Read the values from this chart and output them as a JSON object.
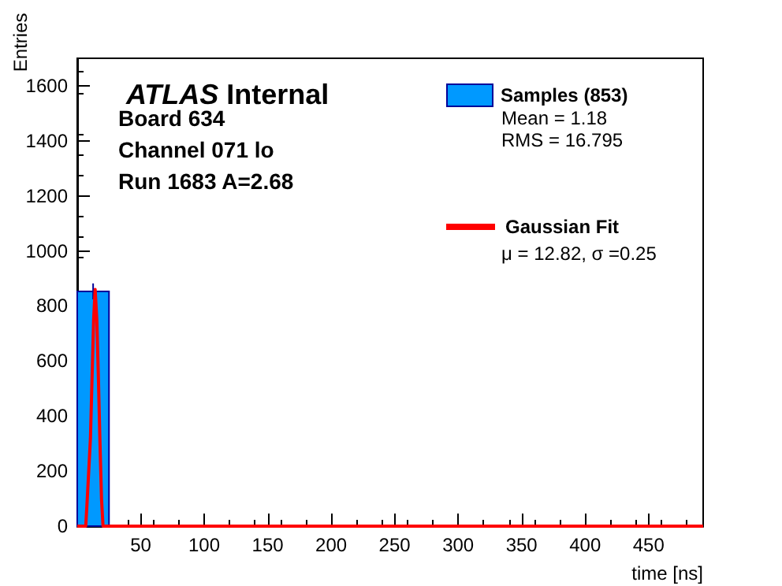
{
  "chart_data": {
    "type": "histogram",
    "title": "ATLAS Internal",
    "xlabel": "time [ns]",
    "ylabel": "Entries",
    "annotations": [
      "Board 634",
      "Channel 071 lo",
      "Run 1683 A=2.68",
      "Mean = 1.18",
      "RMS = 16.795",
      "μ = 12.82, σ =0.25"
    ],
    "series": [
      {
        "name": "Samples (853)",
        "type": "histogram",
        "color": "#0099ff",
        "bins": [
          0,
          25
        ],
        "values": [
          853
        ],
        "errors": [
          29
        ]
      },
      {
        "name": "Gaussian Fit",
        "type": "line",
        "color": "#ff0000",
        "x": [
          0,
          6.7,
          7.9,
          10.4,
          11.6,
          12.9,
          14.1,
          15.4,
          16.7,
          17.8,
          19.1,
          20.3,
          493
        ],
        "values": [
          0,
          0,
          100,
          320,
          530,
          750,
          860,
          750,
          530,
          320,
          100,
          0,
          0
        ]
      }
    ],
    "xlim": [
      0,
      493
    ],
    "xticks": [
      50,
      100,
      150,
      200,
      250,
      300,
      350,
      400,
      450
    ],
    "ylim": [
      0,
      1700
    ],
    "yticks": [
      0,
      200,
      400,
      600,
      800,
      1000,
      1200,
      1400,
      1600
    ],
    "grid": false,
    "legend": "top right"
  }
}
